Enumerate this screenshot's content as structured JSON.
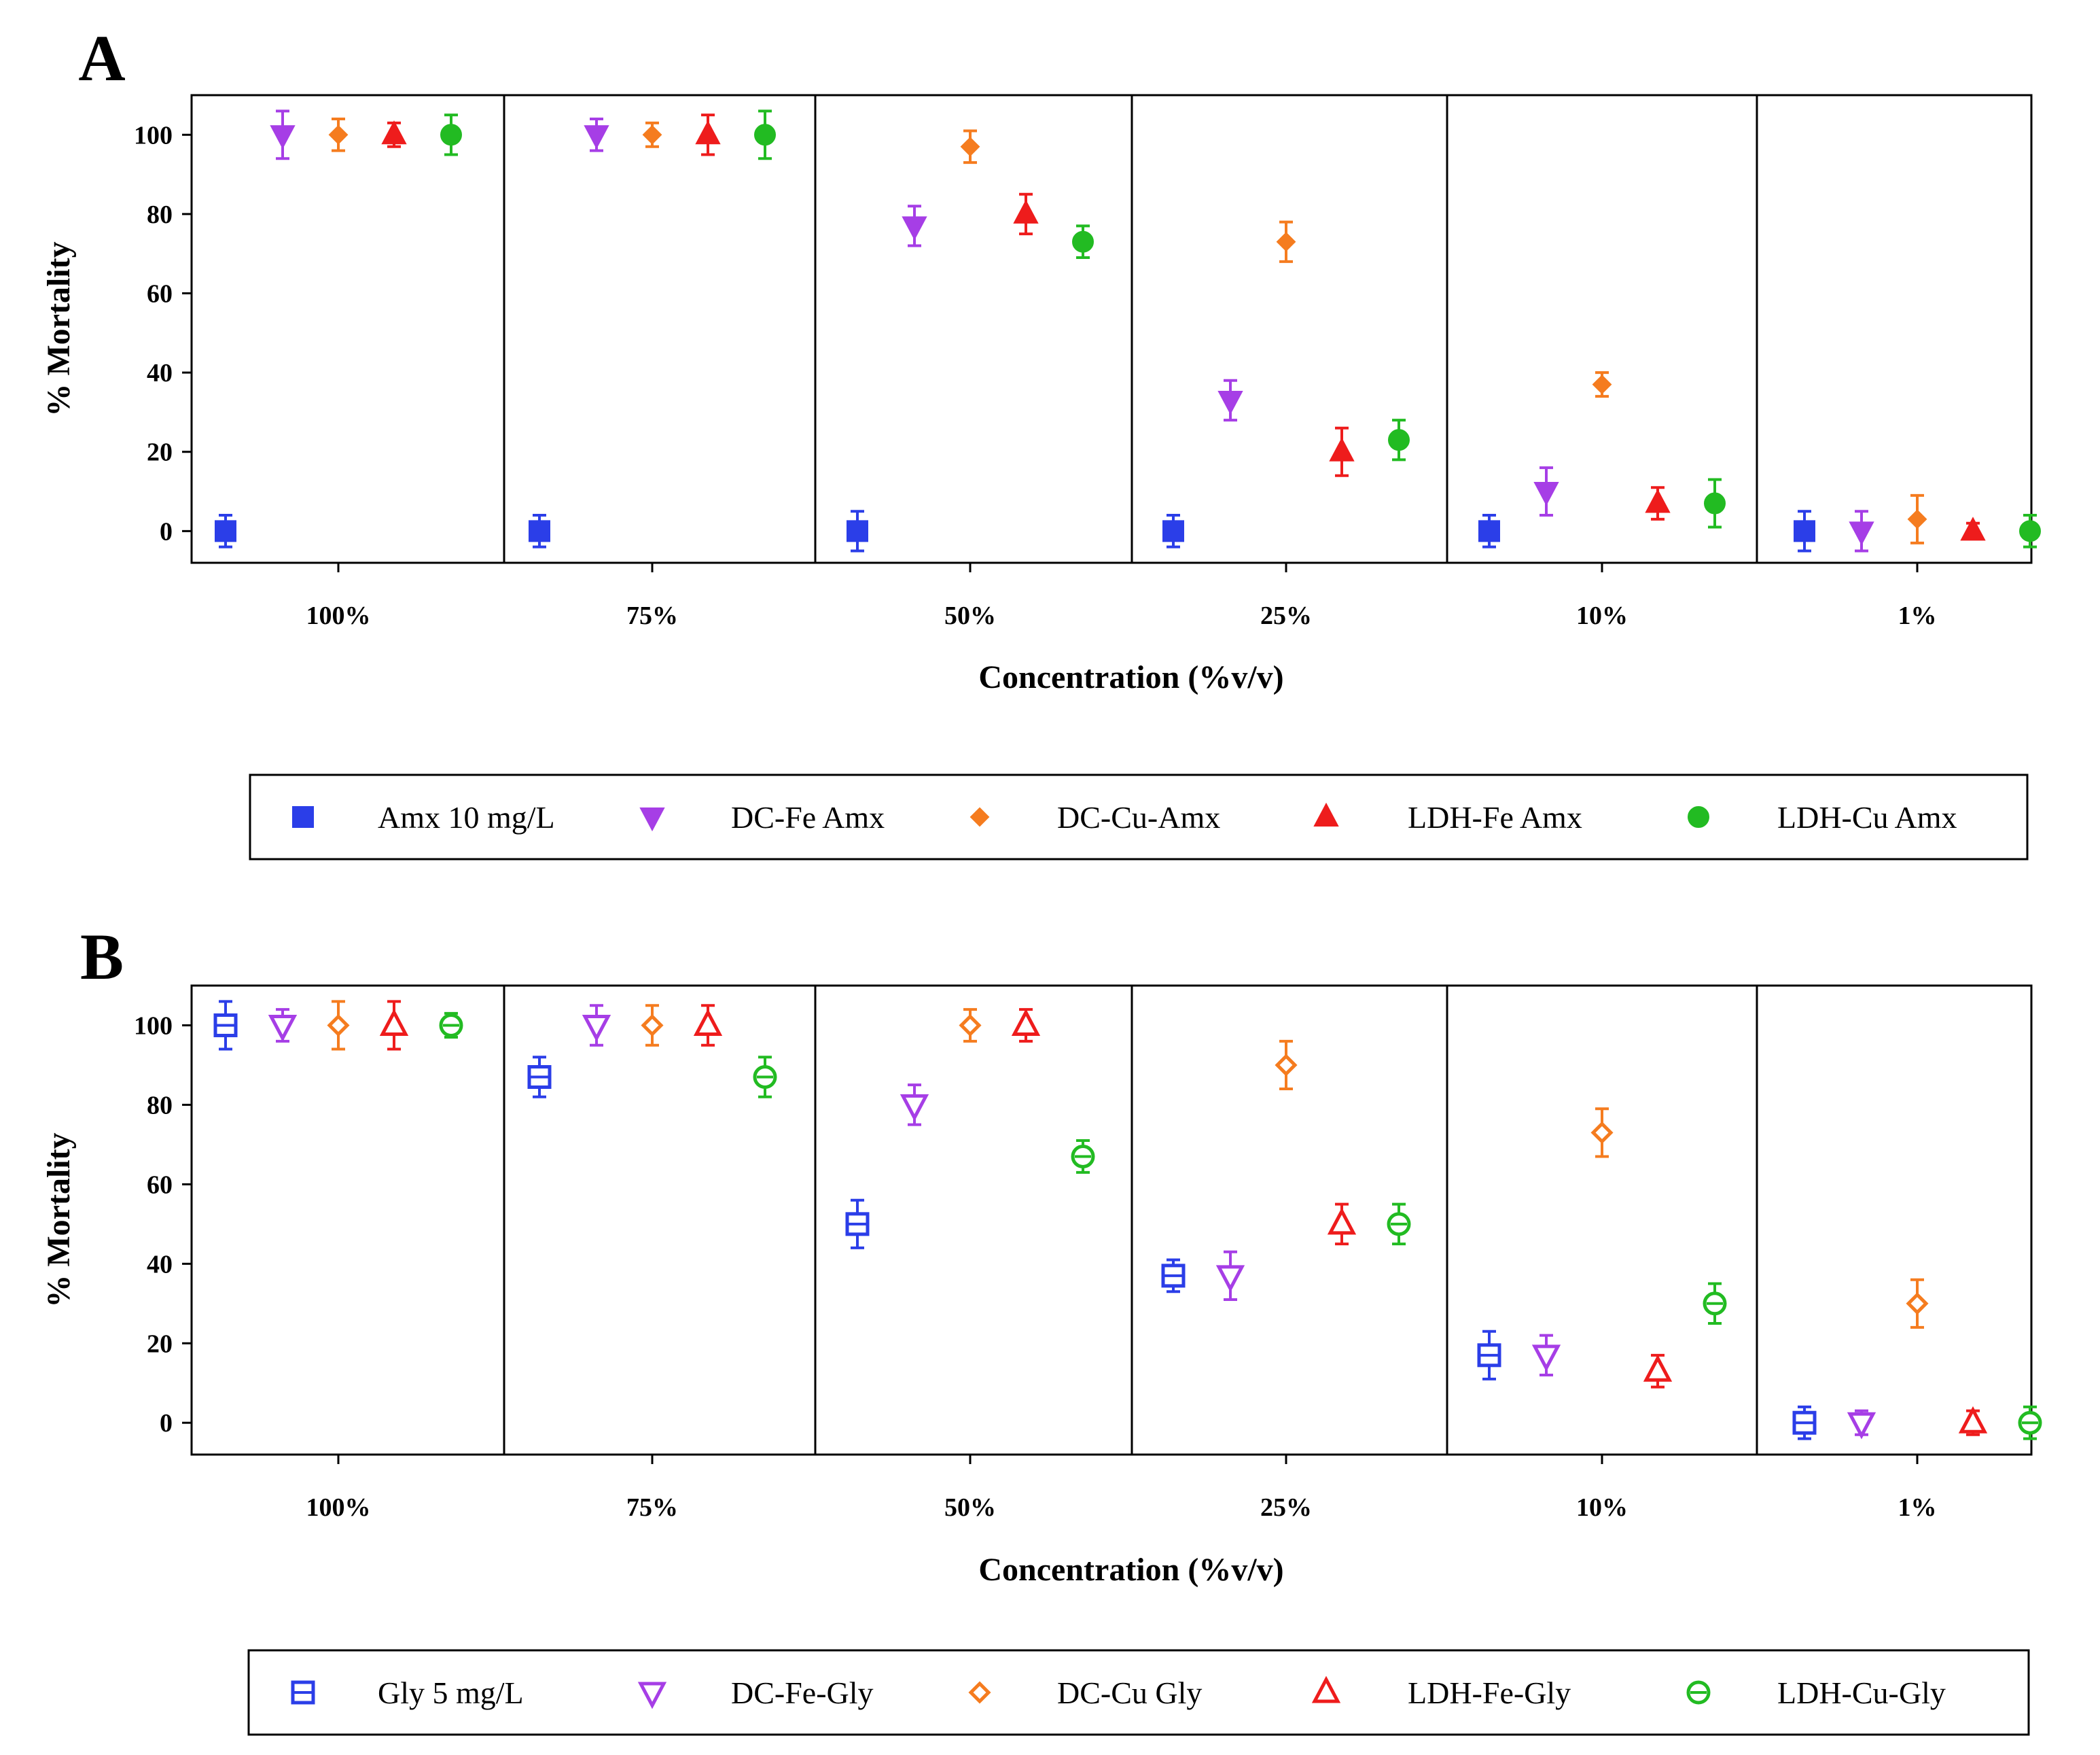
{
  "chart_data": [
    {
      "panel": "A",
      "type": "scatter",
      "ylabel": "% Mortality",
      "xlabel": "Concentration (%v/v)",
      "ylim": [
        -8,
        110
      ],
      "yticks": [
        "0",
        "20",
        "40",
        "60",
        "80",
        "100"
      ],
      "categories": [
        "100%",
        "75%",
        "50%",
        "25%",
        "10%",
        "1%"
      ],
      "series": [
        {
          "name": "Amx 10 mg/L",
          "color": "#2b3ee8",
          "marker": "square",
          "filled": true,
          "values": [
            0,
            0,
            0,
            0,
            0,
            0
          ],
          "errors": [
            4,
            4,
            5,
            4,
            4,
            5
          ]
        },
        {
          "name": "DC-Fe Amx",
          "color": "#a63ee6",
          "marker": "triangle-down",
          "filled": true,
          "values": [
            100,
            100,
            77,
            33,
            10,
            0
          ],
          "errors": [
            6,
            4,
            5,
            5,
            6,
            5
          ]
        },
        {
          "name": "DC-Cu-Amx",
          "color": "#f57c1f",
          "marker": "diamond",
          "filled": true,
          "values": [
            100,
            100,
            97,
            73,
            37,
            3
          ],
          "errors": [
            4,
            3,
            4,
            5,
            3,
            6
          ]
        },
        {
          "name": "LDH-Fe Amx",
          "color": "#ee1c1c",
          "marker": "triangle-up",
          "filled": true,
          "values": [
            100,
            100,
            80,
            20,
            7,
            0
          ],
          "errors": [
            3,
            5,
            5,
            6,
            4,
            2
          ]
        },
        {
          "name": "LDH-Cu Amx",
          "color": "#22bb22",
          "marker": "circle",
          "filled": true,
          "values": [
            100,
            100,
            73,
            23,
            7,
            0
          ],
          "errors": [
            5,
            6,
            4,
            5,
            6,
            4
          ]
        }
      ]
    },
    {
      "panel": "B",
      "type": "scatter",
      "ylabel": "% Mortality",
      "xlabel": "Concentration (%v/v)",
      "ylim": [
        -8,
        110
      ],
      "yticks": [
        "0",
        "20",
        "40",
        "60",
        "80",
        "100"
      ],
      "categories": [
        "100%",
        "75%",
        "50%",
        "25%",
        "10%",
        "1%"
      ],
      "series": [
        {
          "name": "Gly 5 mg/L",
          "color": "#2b3ee8",
          "marker": "square",
          "filled": false,
          "values": [
            100,
            87,
            50,
            37,
            17,
            0
          ],
          "errors": [
            6,
            5,
            6,
            4,
            6,
            4
          ]
        },
        {
          "name": "DC-Fe-Gly",
          "color": "#a63ee6",
          "marker": "triangle-down",
          "filled": false,
          "values": [
            100,
            100,
            80,
            37,
            17,
            0
          ],
          "errors": [
            4,
            5,
            5,
            6,
            5,
            3
          ]
        },
        {
          "name": "DC-Cu Gly",
          "color": "#f57c1f",
          "marker": "diamond",
          "filled": false,
          "values": [
            100,
            100,
            100,
            90,
            73,
            30
          ],
          "errors": [
            6,
            5,
            4,
            6,
            6,
            6
          ]
        },
        {
          "name": "LDH-Fe-Gly",
          "color": "#ee1c1c",
          "marker": "triangle-up",
          "filled": false,
          "values": [
            100,
            100,
            100,
            50,
            13,
            0
          ],
          "errors": [
            6,
            5,
            4,
            5,
            4,
            3
          ]
        },
        {
          "name": "LDH-Cu-Gly",
          "color": "#22bb22",
          "marker": "circle",
          "filled": false,
          "values": [
            100,
            87,
            67,
            50,
            30,
            0
          ],
          "errors": [
            3,
            5,
            4,
            5,
            5,
            4
          ]
        }
      ]
    }
  ]
}
